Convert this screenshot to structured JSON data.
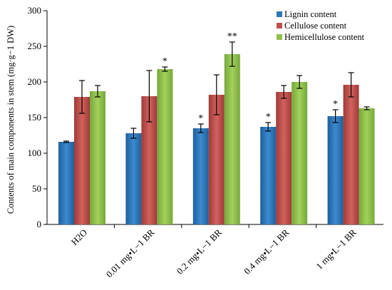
{
  "chart_data": {
    "type": "bar",
    "title": "",
    "xlabel": "",
    "ylabel": "Contents of main components in stem (mg·g−1 DW)",
    "ylim": [
      0,
      300
    ],
    "yticks": [
      0,
      50,
      100,
      150,
      200,
      250,
      300
    ],
    "grid": false,
    "legend_position": "top-right",
    "categories": [
      "H2O",
      "0.01 mg•L−1 BR",
      "0.2 mg•L−1 BR",
      "0.4 mg•L−1 BR",
      "1 mg•L−1 BR"
    ],
    "series": [
      {
        "name": "Lignin content",
        "color": "#2e75b6",
        "values": [
          116,
          128,
          135,
          137,
          152
        ],
        "errors": [
          1,
          7,
          6,
          6,
          9
        ],
        "significance": [
          "",
          "",
          "*",
          "*",
          "*"
        ]
      },
      {
        "name": "Cellulose content",
        "color": "#c0504d",
        "values": [
          179,
          180,
          182,
          186,
          196
        ],
        "errors": [
          23,
          36,
          28,
          9,
          17
        ],
        "significance": [
          "",
          "",
          "",
          "",
          ""
        ]
      },
      {
        "name": "Hemicellulose content",
        "color": "#8fbf4a",
        "values": [
          187,
          218,
          239,
          200,
          163
        ],
        "errors": [
          8,
          3,
          17,
          9,
          2
        ],
        "significance": [
          "",
          "*",
          "**",
          "",
          ""
        ]
      }
    ]
  }
}
